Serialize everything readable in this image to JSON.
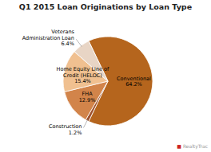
{
  "chart_data": {
    "type": "pie",
    "title": "Q1 2015 Loan Originations by Loan Type",
    "categories": [
      "Conventional\n64.2%",
      "Construction\n1.2%",
      "FHA\n12.9%",
      "Home Equity Line of\nCredit (HELOC)\n15.4%",
      "Veterans\nAdministration Loan\n6.4%"
    ],
    "values": [
      64.2,
      1.2,
      12.9,
      15.4,
      6.4
    ],
    "colors": [
      "#b5651d",
      "#a0522d",
      "#d2844a",
      "#f0c090",
      "#e8d5c5"
    ],
    "annotations": [
      "■ RealtyTrac"
    ]
  }
}
